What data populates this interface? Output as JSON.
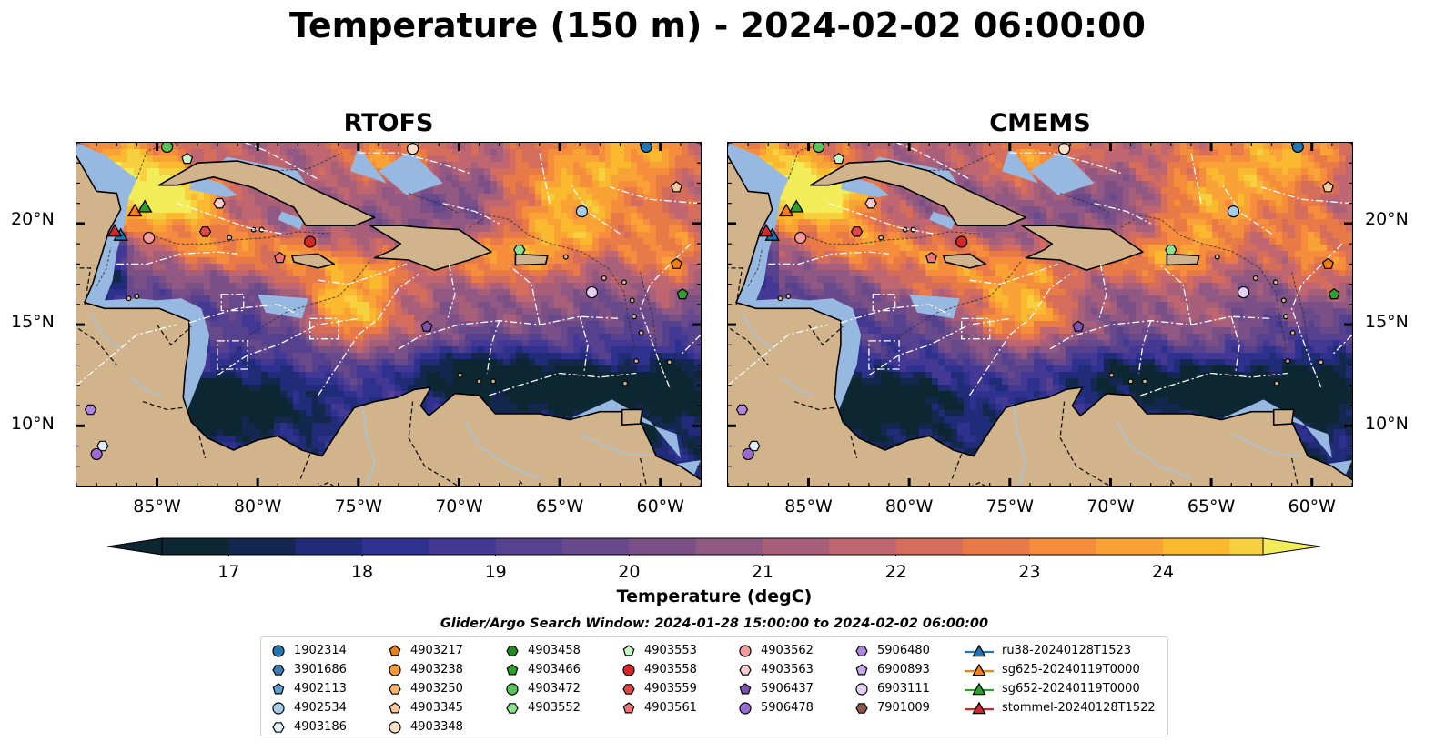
{
  "title": "Temperature (150 m) - 2024-02-02 06:00:00",
  "panels": [
    {
      "title": "RTOFS",
      "variant": "rtofs"
    },
    {
      "title": "CMEMS",
      "variant": "cmems"
    }
  ],
  "axes": {
    "lon_range": [
      -89,
      -58
    ],
    "lat_range": [
      7,
      24
    ],
    "lat_ticks": [
      {
        "value": 20,
        "label": "20°N"
      },
      {
        "value": 15,
        "label": "15°N"
      },
      {
        "value": 10,
        "label": "10°N"
      }
    ],
    "lon_ticks": [
      {
        "value": -85,
        "label": "85°W"
      },
      {
        "value": -80,
        "label": "80°W"
      },
      {
        "value": -75,
        "label": "75°W"
      },
      {
        "value": -70,
        "label": "70°W"
      },
      {
        "value": -65,
        "label": "65°W"
      },
      {
        "value": -60,
        "label": "60°W"
      }
    ]
  },
  "colorbar": {
    "label": "Temperature (degC)",
    "range": [
      16.5,
      24.75
    ],
    "step": 0.5,
    "ticks": [
      {
        "value": 17,
        "label": "17"
      },
      {
        "value": 18,
        "label": "18"
      },
      {
        "value": 19,
        "label": "19"
      },
      {
        "value": 20,
        "label": "20"
      },
      {
        "value": 21,
        "label": "21"
      },
      {
        "value": 22,
        "label": "22"
      },
      {
        "value": 23,
        "label": "23"
      },
      {
        "value": 24,
        "label": "24"
      }
    ],
    "colors": [
      "#0c2632",
      "#14274f",
      "#202c78",
      "#2f318e",
      "#433995",
      "#56418e",
      "#684a8c",
      "#7a5087",
      "#905882",
      "#a8607a",
      "#bf6670",
      "#d56d5d",
      "#e87a48",
      "#f58d3c",
      "#f9a235",
      "#fbb930",
      "#f7d040",
      "#f2ec58"
    ],
    "extend": "both"
  },
  "map_colors": {
    "land": "#d2b48c",
    "shelf": "#97b8e0",
    "river": "#a9c2da",
    "coast": "#000000"
  },
  "search_window": "Glider/Argo Search Window: 2024-01-28 15:00:00 to 2024-02-02 06:00:00",
  "markers": [
    {
      "label": "1902314",
      "shape": "circle",
      "color": "#1f77b4",
      "lon": -60.7,
      "lat": 23.8
    },
    {
      "label": "3901686",
      "shape": "hexagon",
      "color": "#3a7fb7",
      "lon": null,
      "lat": null
    },
    {
      "label": "4902113",
      "shape": "pentagon",
      "color": "#5a9fd0",
      "lon": null,
      "lat": null
    },
    {
      "label": "4902534",
      "shape": "circle",
      "color": "#a6cdea",
      "lon": -63.9,
      "lat": 20.6
    },
    {
      "label": "4903186",
      "shape": "hexagon",
      "color": "#dcecf8",
      "lon": -87.7,
      "lat": 9.0
    },
    {
      "label": "4903217",
      "shape": "pentagon",
      "color": "#f07e0e",
      "lon": -59.2,
      "lat": 18.0
    },
    {
      "label": "4903238",
      "shape": "circle",
      "color": "#f89a3a",
      "lon": null,
      "lat": null
    },
    {
      "label": "4903250",
      "shape": "hexagon",
      "color": "#fcb36a",
      "lon": null,
      "lat": null
    },
    {
      "label": "4903345",
      "shape": "pentagon",
      "color": "#fcc89a",
      "lon": -59.2,
      "lat": 21.8
    },
    {
      "label": "4903348",
      "shape": "circle",
      "color": "#fde0c6",
      "lon": -72.3,
      "lat": 23.7
    },
    {
      "label": "4903458",
      "shape": "hexagon",
      "color": "#238b23",
      "lon": null,
      "lat": null
    },
    {
      "label": "4903466",
      "shape": "pentagon",
      "color": "#2ca02c",
      "lon": -58.9,
      "lat": 16.5
    },
    {
      "label": "4903472",
      "shape": "circle",
      "color": "#58c458",
      "lon": -84.5,
      "lat": 23.8
    },
    {
      "label": "4903552",
      "shape": "hexagon",
      "color": "#8ee28e",
      "lon": -67.0,
      "lat": 18.7
    },
    {
      "label": "4903553",
      "shape": "pentagon",
      "color": "#c7f5c4",
      "lon": -83.5,
      "lat": 23.2
    },
    {
      "label": "4903558",
      "shape": "circle",
      "color": "#d62728",
      "lon": -77.4,
      "lat": 19.1
    },
    {
      "label": "4903559",
      "shape": "hexagon",
      "color": "#e04848",
      "lon": -82.6,
      "lat": 19.6
    },
    {
      "label": "4903561",
      "shape": "pentagon",
      "color": "#ee7478",
      "lon": -78.9,
      "lat": 18.3
    },
    {
      "label": "4903562",
      "shape": "circle",
      "color": "#f49b9b",
      "lon": -85.4,
      "lat": 19.3
    },
    {
      "label": "4903563",
      "shape": "hexagon",
      "color": "#fbcaca",
      "lon": -81.9,
      "lat": 21.0
    },
    {
      "label": "5906437",
      "shape": "pentagon",
      "color": "#7b52ae",
      "lon": -71.6,
      "lat": 14.9
    },
    {
      "label": "5906478",
      "shape": "circle",
      "color": "#9a6ad0",
      "lon": -88.0,
      "lat": 8.6
    },
    {
      "label": "5906480",
      "shape": "hexagon",
      "color": "#ae88dc",
      "lon": -88.3,
      "lat": 10.8
    },
    {
      "label": "6900893",
      "shape": "pentagon",
      "color": "#c8a8ec",
      "lon": null,
      "lat": null
    },
    {
      "label": "6903111",
      "shape": "circle",
      "color": "#e4cff7",
      "lon": -63.4,
      "lat": 16.6
    },
    {
      "label": "7901009",
      "shape": "hexagon",
      "color": "#8c564b",
      "lon": null,
      "lat": null
    }
  ],
  "gliders": [
    {
      "label": "ru38-20240128T1523",
      "color": "#1f77b4",
      "lon": -86.8,
      "lat": 19.4
    },
    {
      "label": "sg625-20240119T0000",
      "color": "#ff7f0e",
      "lon": -86.1,
      "lat": 20.6
    },
    {
      "label": "sg652-20240119T0000",
      "color": "#2ca02c",
      "lon": -85.6,
      "lat": 20.8
    },
    {
      "label": "stommel-20240128T1522",
      "color": "#d62728",
      "lon": -87.1,
      "lat": 19.6
    }
  ]
}
